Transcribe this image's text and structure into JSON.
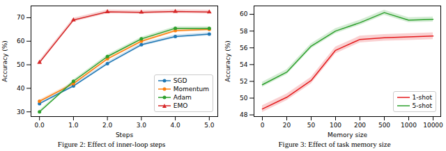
{
  "chart_data": [
    {
      "type": "line",
      "caption": "Figure 2: Effect of inner-loop steps",
      "xlabel": "Steps",
      "ylabel": "Accuracy (%)",
      "x": [
        0,
        1,
        2,
        3,
        4,
        5
      ],
      "xlim": [
        -0.25,
        5.25
      ],
      "xticks": [
        0,
        1,
        2,
        3,
        4,
        5
      ],
      "ylim": [
        28,
        75
      ],
      "yticks": [
        30,
        40,
        50,
        60,
        70
      ],
      "grid": false,
      "legend": "lower right",
      "series": [
        {
          "name": "SGD",
          "color": "#1f77b4",
          "marker": "circle",
          "values": [
            33.5,
            41,
            50.5,
            58.5,
            62,
            63
          ],
          "errors": [
            0.6,
            0.6,
            0.7,
            0.7,
            0.7,
            0.7
          ]
        },
        {
          "name": "Momentum",
          "color": "#ff7f0e",
          "marker": "circle",
          "values": [
            34.5,
            42,
            52.5,
            60,
            64.5,
            65
          ],
          "errors": [
            0.6,
            0.6,
            0.7,
            0.7,
            0.7,
            0.7
          ]
        },
        {
          "name": "Adam",
          "color": "#2ca02c",
          "marker": "circle",
          "values": [
            30,
            43,
            53.5,
            61,
            65.5,
            65.5
          ],
          "errors": [
            0.6,
            0.6,
            0.7,
            0.7,
            0.7,
            0.7
          ]
        },
        {
          "name": "EMO",
          "color": "#d62728",
          "marker": "triangle",
          "values": [
            51,
            69,
            72.5,
            72.3,
            72.6,
            72.4
          ],
          "errors": [
            0.8,
            0.8,
            0.8,
            0.8,
            0.8,
            0.8
          ]
        }
      ]
    },
    {
      "type": "line",
      "caption": "Figure 3: Effect of task memory size",
      "xlabel": "Memory size",
      "ylabel": "Accuracy (%)",
      "categories": [
        "0",
        "20",
        "50",
        "100",
        "200",
        "500",
        "1000",
        "10000"
      ],
      "ylim": [
        47.8,
        61
      ],
      "yticks": [
        48,
        50,
        52,
        54,
        56,
        58,
        60
      ],
      "grid": false,
      "legend": "lower right",
      "series": [
        {
          "name": "1-shot",
          "color": "#e41a1c",
          "values": [
            48.7,
            50.1,
            52.1,
            55.7,
            57.0,
            57.2,
            57.3,
            57.4
          ],
          "errors": [
            0.4,
            0.4,
            0.4,
            0.4,
            0.4,
            0.4,
            0.4,
            0.4
          ]
        },
        {
          "name": "5-shot",
          "color": "#2ca02c",
          "values": [
            51.6,
            53.1,
            56.2,
            58.0,
            59.0,
            60.2,
            59.3,
            59.4
          ],
          "errors": [
            0.3,
            0.3,
            0.3,
            0.3,
            0.3,
            0.3,
            0.3,
            0.3
          ]
        }
      ]
    }
  ]
}
